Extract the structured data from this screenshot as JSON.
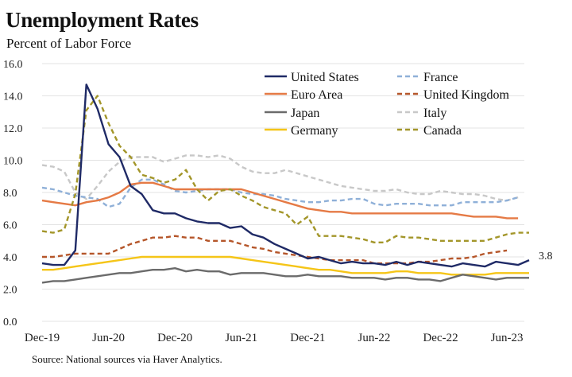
{
  "title": "Unemployment Rates",
  "subtitle": "Percent of Labor Force",
  "source": "Source: National sources via Haver Analytics.",
  "chart_data": {
    "type": "line",
    "title": "Unemployment Rates",
    "ylabel": "Percent of Labor Force",
    "ylim": [
      0,
      16
    ],
    "yticks": [
      "0.0",
      "2.0",
      "4.0",
      "6.0",
      "8.0",
      "10.0",
      "12.0",
      "14.0",
      "16.0"
    ],
    "xtick_labels": [
      "Dec-19",
      "Jun-20",
      "Dec-20",
      "Jun-21",
      "Dec-21",
      "Jun-22",
      "Dec-22",
      "Jun-23"
    ],
    "x_start": "Dec-19",
    "x_end": "Aug-23",
    "frequency": "monthly",
    "grid": true,
    "legend_position": "top-right",
    "end_label": "3.8",
    "series": [
      {
        "name": "United States",
        "color": "#1f2a66",
        "dash": false,
        "values": [
          3.6,
          3.5,
          3.5,
          4.4,
          14.7,
          13.2,
          11.0,
          10.2,
          8.4,
          7.9,
          6.9,
          6.7,
          6.7,
          6.4,
          6.2,
          6.1,
          6.1,
          5.8,
          5.9,
          5.4,
          5.2,
          4.8,
          4.5,
          4.2,
          3.9,
          4.0,
          3.8,
          3.6,
          3.7,
          3.6,
          3.6,
          3.5,
          3.7,
          3.5,
          3.7,
          3.6,
          3.5,
          3.4,
          3.6,
          3.5,
          3.4,
          3.7,
          3.6,
          3.5,
          3.8
        ]
      },
      {
        "name": "France",
        "color": "#8fb0d8",
        "dash": true,
        "values": [
          8.3,
          8.2,
          8.0,
          7.8,
          7.7,
          7.6,
          7.1,
          7.3,
          8.3,
          8.8,
          8.8,
          8.5,
          8.1,
          8.0,
          8.1,
          8.2,
          8.2,
          8.2,
          8.0,
          7.9,
          7.9,
          7.8,
          7.6,
          7.5,
          7.4,
          7.4,
          7.5,
          7.5,
          7.6,
          7.6,
          7.3,
          7.2,
          7.3,
          7.3,
          7.3,
          7.2,
          7.2,
          7.2,
          7.4,
          7.4,
          7.4,
          7.4,
          7.5,
          7.7,
          null
        ]
      },
      {
        "name": "Euro Area",
        "color": "#e57a45",
        "dash": false,
        "values": [
          7.5,
          7.4,
          7.3,
          7.2,
          7.4,
          7.5,
          7.7,
          8.0,
          8.5,
          8.6,
          8.6,
          8.4,
          8.2,
          8.2,
          8.2,
          8.2,
          8.2,
          8.2,
          8.2,
          8.0,
          7.8,
          7.6,
          7.4,
          7.2,
          7.0,
          6.9,
          6.8,
          6.8,
          6.7,
          6.7,
          6.7,
          6.7,
          6.7,
          6.7,
          6.7,
          6.7,
          6.7,
          6.7,
          6.6,
          6.5,
          6.5,
          6.5,
          6.4,
          6.4,
          null
        ]
      },
      {
        "name": "United Kingdom",
        "color": "#b5562a",
        "dash": true,
        "values": [
          4.0,
          4.0,
          4.1,
          4.2,
          4.2,
          4.2,
          4.2,
          4.5,
          4.8,
          5.0,
          5.2,
          5.2,
          5.3,
          5.2,
          5.2,
          5.0,
          5.0,
          5.0,
          4.8,
          4.6,
          4.5,
          4.3,
          4.2,
          4.1,
          4.0,
          3.9,
          3.8,
          3.8,
          3.8,
          3.8,
          3.6,
          3.6,
          3.6,
          3.6,
          3.7,
          3.7,
          3.8,
          3.9,
          3.9,
          4.0,
          4.2,
          4.3,
          4.4,
          null,
          null
        ]
      },
      {
        "name": "Japan",
        "color": "#6b6b6b",
        "dash": false,
        "values": [
          2.4,
          2.5,
          2.5,
          2.6,
          2.7,
          2.8,
          2.9,
          3.0,
          3.0,
          3.1,
          3.2,
          3.2,
          3.3,
          3.1,
          3.2,
          3.1,
          3.1,
          2.9,
          3.0,
          3.0,
          3.0,
          2.9,
          2.8,
          2.8,
          2.9,
          2.8,
          2.8,
          2.8,
          2.7,
          2.7,
          2.7,
          2.6,
          2.7,
          2.7,
          2.6,
          2.6,
          2.5,
          2.7,
          2.9,
          2.8,
          2.7,
          2.6,
          2.7,
          2.7,
          2.7
        ]
      },
      {
        "name": "Italy",
        "color": "#c8c8c8",
        "dash": true,
        "values": [
          9.7,
          9.6,
          9.3,
          8.0,
          7.6,
          8.4,
          9.3,
          9.9,
          10.2,
          10.2,
          10.2,
          9.9,
          10.1,
          10.3,
          10.3,
          10.2,
          10.3,
          10.1,
          9.6,
          9.3,
          9.2,
          9.2,
          9.4,
          9.2,
          9.0,
          8.8,
          8.6,
          8.4,
          8.3,
          8.2,
          8.1,
          8.1,
          8.2,
          8.0,
          7.9,
          7.9,
          8.1,
          8.0,
          7.9,
          7.9,
          7.8,
          7.6,
          7.5,
          7.7,
          null
        ]
      },
      {
        "name": "Germany",
        "color": "#f5c518",
        "dash": false,
        "values": [
          3.2,
          3.2,
          3.3,
          3.4,
          3.5,
          3.6,
          3.7,
          3.8,
          3.9,
          4.0,
          4.0,
          4.0,
          4.0,
          4.0,
          4.0,
          4.0,
          4.0,
          4.0,
          3.9,
          3.8,
          3.7,
          3.6,
          3.5,
          3.4,
          3.3,
          3.2,
          3.2,
          3.1,
          3.0,
          3.0,
          3.0,
          3.0,
          3.1,
          3.1,
          3.0,
          3.0,
          3.0,
          2.9,
          2.9,
          2.9,
          2.9,
          3.0,
          3.0,
          3.0,
          3.0
        ]
      },
      {
        "name": "Canada",
        "color": "#a3962a",
        "dash": true,
        "values": [
          5.6,
          5.5,
          5.7,
          7.9,
          13.1,
          14.0,
          12.3,
          10.9,
          10.2,
          9.1,
          8.9,
          8.6,
          8.8,
          9.4,
          8.2,
          7.5,
          8.1,
          8.2,
          7.8,
          7.5,
          7.1,
          6.9,
          6.7,
          6.0,
          6.5,
          5.3,
          5.3,
          5.3,
          5.2,
          5.1,
          4.9,
          4.9,
          5.3,
          5.2,
          5.2,
          5.1,
          5.0,
          5.0,
          5.0,
          5.0,
          5.0,
          5.2,
          5.4,
          5.5,
          5.5
        ]
      }
    ]
  }
}
